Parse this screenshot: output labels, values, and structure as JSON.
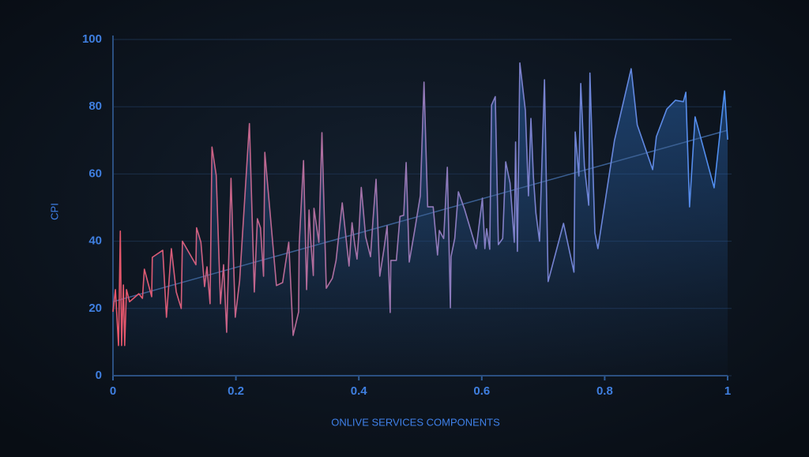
{
  "chart_data": {
    "type": "area",
    "x_label": "ONLIVE SERVICES COMPONENTS",
    "y_label": "CPI",
    "x": [
      0,
      0.004,
      0.009,
      0.012,
      0.014,
      0.017,
      0.019,
      0.022,
      0.027,
      0.042,
      0.048,
      0.051,
      0.063,
      0.064,
      0.081,
      0.087,
      0.095,
      0.103,
      0.111,
      0.113,
      0.135,
      0.136,
      0.143,
      0.149,
      0.153,
      0.158,
      0.161,
      0.168,
      0.175,
      0.18,
      0.185,
      0.192,
      0.199,
      0.206,
      0.222,
      0.23,
      0.235,
      0.24,
      0.245,
      0.247,
      0.266,
      0.276,
      0.286,
      0.293,
      0.302,
      0.303,
      0.31,
      0.315,
      0.319,
      0.321,
      0.326,
      0.327,
      0.335,
      0.34,
      0.347,
      0.357,
      0.363,
      0.373,
      0.384,
      0.389,
      0.393,
      0.397,
      0.4,
      0.404,
      0.411,
      0.419,
      0.423,
      0.428,
      0.434,
      0.441,
      0.446,
      0.451,
      0.452,
      0.461,
      0.467,
      0.473,
      0.477,
      0.482,
      0.491,
      0.5,
      0.506,
      0.512,
      0.521,
      0.528,
      0.531,
      0.538,
      0.544,
      0.549,
      0.55,
      0.556,
      0.562,
      0.572,
      0.591,
      0.601,
      0.605,
      0.608,
      0.613,
      0.616,
      0.622,
      0.627,
      0.634,
      0.639,
      0.646,
      0.653,
      0.655,
      0.658,
      0.662,
      0.671,
      0.676,
      0.68,
      0.684,
      0.688,
      0.694,
      0.702,
      0.708,
      0.733,
      0.75,
      0.752,
      0.758,
      0.761,
      0.767,
      0.774,
      0.776,
      0.784,
      0.789,
      0.816,
      0.843,
      0.853,
      0.878,
      0.884,
      0.901,
      0.915,
      0.928,
      0.932,
      0.938,
      0.947,
      0.978,
      0.995,
      1.0
    ],
    "values": [
      19,
      25.6,
      9,
      43,
      9,
      27,
      9,
      25.6,
      22,
      24.4,
      23,
      31.7,
      23.5,
      35.2,
      37.3,
      17.4,
      37.8,
      24.9,
      20,
      40,
      33,
      44,
      39.7,
      26.5,
      32.4,
      21.4,
      68,
      59.6,
      21.4,
      33,
      12.9,
      58.7,
      17.4,
      28.2,
      75,
      24.9,
      46.7,
      44,
      29.6,
      66.4,
      26.8,
      27.7,
      39.7,
      12,
      19,
      39,
      64,
      25.6,
      49.3,
      42.3,
      29.8,
      49.8,
      39.7,
      72.3,
      26,
      29,
      34.3,
      51.4,
      32.6,
      45.5,
      39.4,
      34.7,
      42,
      56,
      41.3,
      35.4,
      46.2,
      58.4,
      29.6,
      37.8,
      44.6,
      18.8,
      34.3,
      34.3,
      47.4,
      47.7,
      63.4,
      33.8,
      43.4,
      53.5,
      87.3,
      50.2,
      50.2,
      35.9,
      43.2,
      40.8,
      62,
      20.2,
      35.4,
      40.8,
      54.7,
      49.5,
      37.8,
      52.8,
      37.8,
      43.7,
      37.6,
      80.5,
      83,
      39,
      40.8,
      63.6,
      57.3,
      39.7,
      69.5,
      37,
      93,
      78.9,
      53.5,
      76.5,
      59,
      48.4,
      40,
      88,
      28,
      45.3,
      30.8,
      72.5,
      59.4,
      86.9,
      62.4,
      50.7,
      90,
      42.5,
      37.8,
      70,
      91.3,
      74.6,
      61.3,
      71.1,
      79.3,
      81.9,
      81.5,
      84.3,
      50.2,
      77,
      55.9,
      84.7,
      70.2
    ],
    "trend": {
      "x": [
        0,
        1
      ],
      "values": [
        22,
        73
      ]
    },
    "line_colors": [
      "#e8566a",
      "#9479b8",
      "#4d8ff2"
    ],
    "fill_color": "#2a65b0",
    "xlim": [
      0,
      1
    ],
    "xticks": [
      0,
      0.2,
      0.4,
      0.6,
      0.8,
      1
    ],
    "ylim": [
      0,
      100
    ],
    "yticks": [
      0,
      20,
      40,
      60,
      80,
      100
    ],
    "grid": true
  }
}
